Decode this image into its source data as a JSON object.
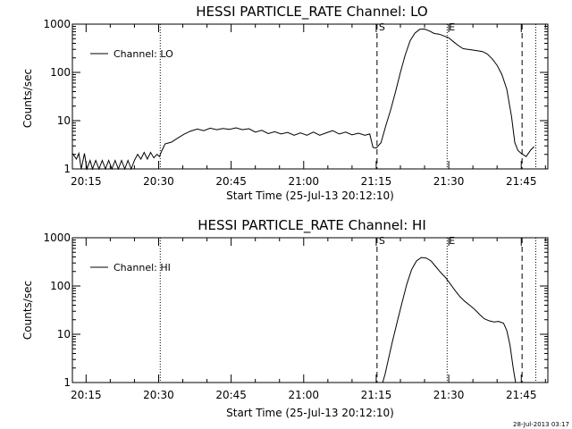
{
  "chart_data": [
    {
      "type": "line",
      "title": "HESSI PARTICLE_RATE Channel: LO",
      "xlabel": "Start Time (25-Jul-13 20:12:10)",
      "ylabel": "Counts/sec",
      "y_scale": "log",
      "ylim": [
        1,
        1000
      ],
      "xlim": [
        "20:12:10",
        "21:50:30"
      ],
      "x_ticks": [
        "20:15",
        "20:30",
        "20:45",
        "21:00",
        "21:15",
        "21:30",
        "21:45"
      ],
      "y_ticks": [
        "1",
        "10",
        "100",
        "1000"
      ],
      "legend": {
        "placement": "top-left",
        "entries": [
          "Channel: LO"
        ]
      },
      "markers": [
        {
          "label": "",
          "time": "20:30:20",
          "style": "dotted"
        },
        {
          "label": "S",
          "time": "21:15:10",
          "style": "dashed"
        },
        {
          "label": "E",
          "time": "21:29:40",
          "style": "dotted"
        },
        {
          "label": "",
          "time": "21:45:10",
          "style": "dashed"
        },
        {
          "label": "",
          "time": "21:48:00",
          "style": "dotted"
        }
      ],
      "series": [
        {
          "name": "Channel: LO",
          "points": [
            [
              "20:12:10",
              2.1
            ],
            [
              "20:13:00",
              1.6
            ],
            [
              "20:13:30",
              2.1
            ],
            [
              "20:14:00",
              1.0
            ],
            [
              "20:14:40",
              2.1
            ],
            [
              "20:15:10",
              1.0
            ],
            [
              "20:15:50",
              1.5
            ],
            [
              "20:16:20",
              1.0
            ],
            [
              "20:17:00",
              1.5
            ],
            [
              "20:17:40",
              1.0
            ],
            [
              "20:18:20",
              1.5
            ],
            [
              "20:19:00",
              1.0
            ],
            [
              "20:19:40",
              1.5
            ],
            [
              "20:20:20",
              1.0
            ],
            [
              "20:21:00",
              1.5
            ],
            [
              "20:21:40",
              1.0
            ],
            [
              "20:22:20",
              1.5
            ],
            [
              "20:23:00",
              1.0
            ],
            [
              "20:23:40",
              1.5
            ],
            [
              "20:24:20",
              1.0
            ],
            [
              "20:25:00",
              1.5
            ],
            [
              "20:25:40",
              2.0
            ],
            [
              "20:26:20",
              1.6
            ],
            [
              "20:27:00",
              2.2
            ],
            [
              "20:27:40",
              1.6
            ],
            [
              "20:28:20",
              2.2
            ],
            [
              "20:29:00",
              1.7
            ],
            [
              "20:29:40",
              2.0
            ],
            [
              "20:30:10",
              1.8
            ],
            [
              "20:30:40",
              2.4
            ],
            [
              "20:31:20",
              3.3
            ],
            [
              "20:32:40",
              3.6
            ],
            [
              "20:34:00",
              4.4
            ],
            [
              "20:35:20",
              5.3
            ],
            [
              "20:36:40",
              6.1
            ],
            [
              "20:38:00",
              6.7
            ],
            [
              "20:39:20",
              6.2
            ],
            [
              "20:40:40",
              7.0
            ],
            [
              "20:42:00",
              6.5
            ],
            [
              "20:43:20",
              6.9
            ],
            [
              "20:44:40",
              6.6
            ],
            [
              "20:46:00",
              7.1
            ],
            [
              "20:47:20",
              6.5
            ],
            [
              "20:48:40",
              6.8
            ],
            [
              "20:50:00",
              5.8
            ],
            [
              "20:51:20",
              6.3
            ],
            [
              "20:52:40",
              5.4
            ],
            [
              "20:54:00",
              5.9
            ],
            [
              "20:55:20",
              5.3
            ],
            [
              "20:56:40",
              5.7
            ],
            [
              "20:58:00",
              5.0
            ],
            [
              "20:59:20",
              5.6
            ],
            [
              "21:00:40",
              5.0
            ],
            [
              "21:02:00",
              5.8
            ],
            [
              "21:03:20",
              5.0
            ],
            [
              "21:04:40",
              5.6
            ],
            [
              "21:06:00",
              6.2
            ],
            [
              "21:07:20",
              5.3
            ],
            [
              "21:08:40",
              5.8
            ],
            [
              "21:10:00",
              5.1
            ],
            [
              "21:11:20",
              5.5
            ],
            [
              "21:12:40",
              5.0
            ],
            [
              "21:13:40",
              5.3
            ],
            [
              "21:14:20",
              2.8
            ],
            [
              "21:15:00",
              2.7
            ],
            [
              "21:16:00",
              3.5
            ],
            [
              "21:17:00",
              8.0
            ],
            [
              "21:18:00",
              17
            ],
            [
              "21:19:00",
              40
            ],
            [
              "21:20:00",
              100
            ],
            [
              "21:21:00",
              230
            ],
            [
              "21:22:00",
              450
            ],
            [
              "21:23:00",
              650
            ],
            [
              "21:24:00",
              780
            ],
            [
              "21:25:00",
              790
            ],
            [
              "21:26:00",
              720
            ],
            [
              "21:27:00",
              640
            ],
            [
              "21:28:00",
              620
            ],
            [
              "21:29:00",
              570
            ],
            [
              "21:30:00",
              520
            ],
            [
              "21:31:00",
              430
            ],
            [
              "21:32:00",
              360
            ],
            [
              "21:33:00",
              310
            ],
            [
              "21:34:00",
              300
            ],
            [
              "21:35:00",
              290
            ],
            [
              "21:36:00",
              280
            ],
            [
              "21:37:00",
              270
            ],
            [
              "21:38:00",
              240
            ],
            [
              "21:39:00",
              190
            ],
            [
              "21:40:00",
              140
            ],
            [
              "21:41:00",
              90
            ],
            [
              "21:42:00",
              45
            ],
            [
              "21:43:00",
              12
            ],
            [
              "21:43:40",
              3.5
            ],
            [
              "21:44:20",
              2.4
            ],
            [
              "21:45:00",
              2.1
            ],
            [
              "21:46:00",
              1.8
            ],
            [
              "21:47:00",
              2.5
            ],
            [
              "21:47:40",
              2.9
            ]
          ]
        }
      ]
    },
    {
      "type": "line",
      "title": "HESSI PARTICLE_RATE Channel: HI",
      "xlabel": "Start Time (25-Jul-13 20:12:10)",
      "ylabel": "Counts/sec",
      "y_scale": "log",
      "ylim": [
        1,
        1000
      ],
      "xlim": [
        "20:12:10",
        "21:50:30"
      ],
      "x_ticks": [
        "20:15",
        "20:30",
        "20:45",
        "21:00",
        "21:15",
        "21:30",
        "21:45"
      ],
      "y_ticks": [
        "1",
        "10",
        "100",
        "1000"
      ],
      "legend": {
        "placement": "top-left",
        "entries": [
          "Channel: HI"
        ]
      },
      "markers": [
        {
          "label": "",
          "time": "20:30:20",
          "style": "dotted"
        },
        {
          "label": "S",
          "time": "21:15:10",
          "style": "dashed"
        },
        {
          "label": "E",
          "time": "21:29:40",
          "style": "dotted"
        },
        {
          "label": "",
          "time": "21:45:10",
          "style": "dashed"
        },
        {
          "label": "",
          "time": "21:48:00",
          "style": "dotted"
        }
      ],
      "series": [
        {
          "name": "Channel: HI",
          "points": [
            [
              "21:16:20",
              1.0
            ],
            [
              "21:16:50",
              1.5
            ],
            [
              "21:17:30",
              3
            ],
            [
              "21:18:20",
              7
            ],
            [
              "21:19:20",
              18
            ],
            [
              "21:20:20",
              45
            ],
            [
              "21:21:20",
              110
            ],
            [
              "21:22:20",
              220
            ],
            [
              "21:23:20",
              330
            ],
            [
              "21:24:20",
              390
            ],
            [
              "21:25:20",
              380
            ],
            [
              "21:26:20",
              330
            ],
            [
              "21:27:20",
              250
            ],
            [
              "21:28:20",
              190
            ],
            [
              "21:29:20",
              150
            ],
            [
              "21:30:20",
              110
            ],
            [
              "21:31:20",
              80
            ],
            [
              "21:32:20",
              60
            ],
            [
              "21:33:20",
              48
            ],
            [
              "21:34:20",
              40
            ],
            [
              "21:35:20",
              33
            ],
            [
              "21:36:20",
              26
            ],
            [
              "21:37:20",
              21
            ],
            [
              "21:38:20",
              19
            ],
            [
              "21:39:20",
              18
            ],
            [
              "21:40:20",
              18.5
            ],
            [
              "21:41:20",
              17
            ],
            [
              "21:42:00",
              12
            ],
            [
              "21:42:40",
              6
            ],
            [
              "21:43:20",
              2
            ],
            [
              "21:43:50",
              1.0
            ]
          ]
        }
      ]
    }
  ],
  "timestamp": "28-Jul-2013 03:17"
}
